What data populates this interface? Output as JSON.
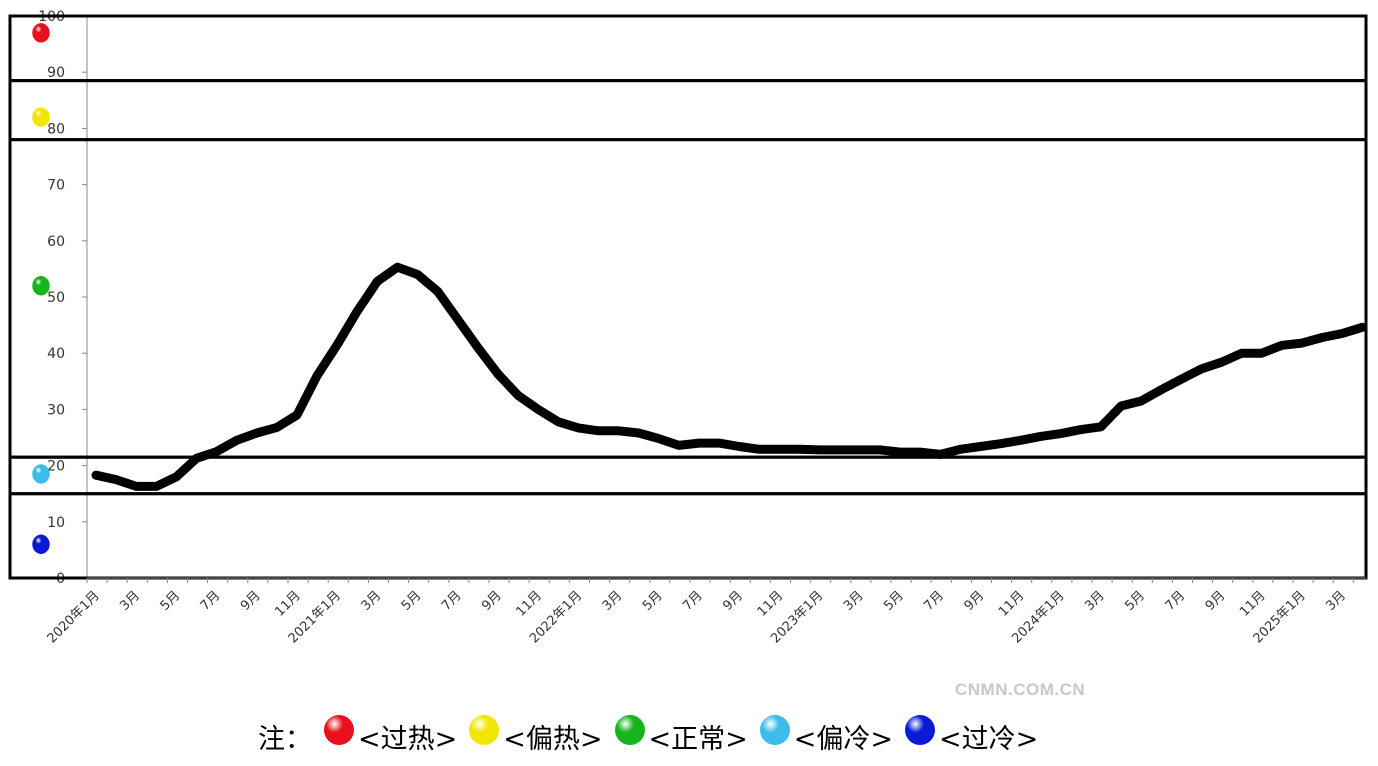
{
  "chart_data": {
    "type": "line",
    "y_range": [
      0,
      100
    ],
    "y_ticks": [
      "0",
      "10",
      "20",
      "30",
      "40",
      "50",
      "60",
      "70",
      "80",
      "90",
      "100"
    ],
    "x_tick_labels": [
      "2020年1月",
      "3月",
      "5月",
      "7月",
      "9月",
      "11月",
      "2021年1月",
      "3月",
      "5月",
      "7月",
      "9月",
      "11月",
      "2022年1月",
      "3月",
      "5月",
      "7月",
      "9月",
      "11月",
      "2023年1月",
      "3月",
      "5月",
      "7月",
      "9月",
      "11月",
      "2024年1月",
      "3月",
      "5月",
      "7月",
      "9月",
      "11月",
      "2025年1月",
      "3月"
    ],
    "line_color": "#000000",
    "zone_boundaries": [
      15,
      21.5,
      78,
      88.5
    ],
    "zone_markers": [
      {
        "zone": "过热",
        "value": 97,
        "color": "#e8101a"
      },
      {
        "zone": "偏热",
        "value": 82,
        "color": "#f2e600"
      },
      {
        "zone": "正常",
        "value": 52,
        "color": "#16b51c"
      },
      {
        "zone": "偏冷",
        "value": 18.5,
        "color": "#3bbde8"
      },
      {
        "zone": "过冷",
        "value": 6,
        "color": "#0a1ad6"
      }
    ],
    "series": [
      {
        "start": "2020-01",
        "values": [
          18.3,
          17.5,
          16.3,
          16.3,
          18.0,
          21.3,
          22.5,
          24.5,
          25.8,
          26.8,
          29.0,
          36.0,
          41.5,
          47.5,
          52.8,
          55.3,
          54.0,
          51.0,
          46.0,
          41.0,
          36.3,
          32.5,
          30.0,
          27.8,
          26.7,
          26.2,
          26.2,
          25.8,
          24.8,
          23.6,
          24.0,
          24.0,
          23.4,
          22.9,
          22.9,
          22.9,
          22.8,
          22.8,
          22.8,
          22.8,
          22.4,
          22.4,
          22.0,
          22.9,
          23.4,
          23.9,
          24.5,
          25.2,
          25.7,
          26.4,
          26.9,
          30.6,
          31.5,
          33.5,
          35.4,
          37.2,
          38.4,
          40.0,
          40.0,
          41.4,
          41.8,
          42.8,
          43.5,
          44.6
        ]
      }
    ]
  },
  "note": {
    "prefix": "注：",
    "items": [
      {
        "label": "<过热>",
        "color": "#e8101a"
      },
      {
        "label": "<偏热>",
        "color": "#f2e600"
      },
      {
        "label": "<正常>",
        "color": "#16b51c"
      },
      {
        "label": "<偏冷>",
        "color": "#3bbde8"
      },
      {
        "label": "<过冷>",
        "color": "#0a1ad6"
      }
    ]
  },
  "watermark": "CNMN.COM.CN"
}
